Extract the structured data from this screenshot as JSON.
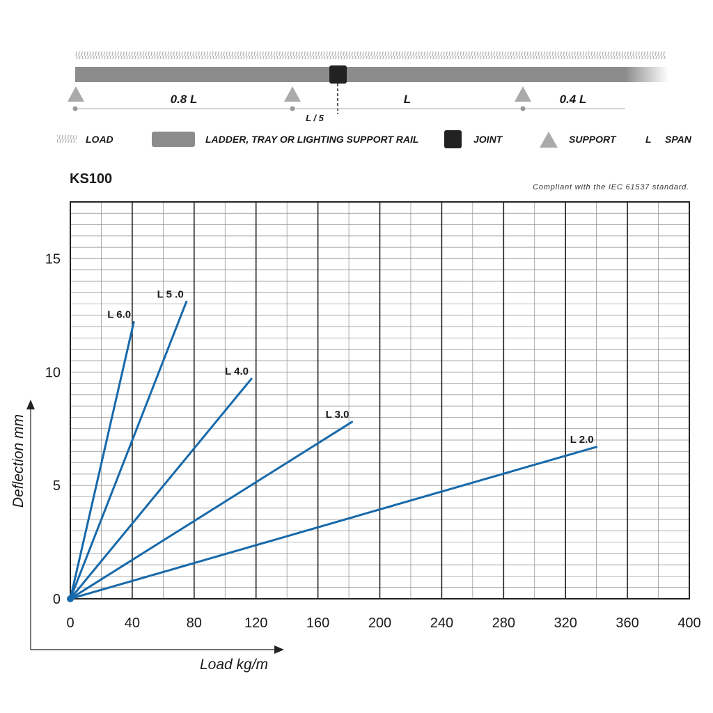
{
  "diagram": {
    "dim_left": "0.8 L",
    "dim_mid": "L",
    "dim_right": "0.4 L",
    "joint_offset": "L / 5"
  },
  "legend": {
    "load": "LOAD",
    "rail": "LADDER, TRAY OR LIGHTING SUPPORT RAIL",
    "joint": "JOINT",
    "support": "SUPPORT",
    "span_symbol": "L",
    "span": "SPAN"
  },
  "model": "KS100",
  "standard_note": "Compliant with the IEC 61537 standard.",
  "colors": {
    "series": "#1769aa",
    "rail": "#8c8c8c",
    "joint": "#222222",
    "support": "#aaaaaa",
    "grid": "#444444"
  },
  "chart_data": {
    "type": "line",
    "title": "KS100",
    "xlabel": "Load kg/m",
    "ylabel": "Deflection mm",
    "xlim": [
      0,
      400
    ],
    "ylim": [
      0,
      17.5
    ],
    "xticks": [
      "0",
      "40",
      "80",
      "120",
      "160",
      "200",
      "240",
      "280",
      "320",
      "360",
      "400"
    ],
    "yticks": [
      {
        "value": 0,
        "label": "0"
      },
      {
        "value": 5,
        "label": "5"
      },
      {
        "value": 10,
        "label": "10"
      },
      {
        "value": 15,
        "label": "15"
      }
    ],
    "grid": true,
    "series": [
      {
        "name": "L 6.0",
        "points": [
          [
            0,
            0
          ],
          [
            41,
            12.2
          ]
        ]
      },
      {
        "name": "L 5 .0",
        "points": [
          [
            0,
            0
          ],
          [
            75,
            13.1
          ]
        ]
      },
      {
        "name": "L 4.0",
        "points": [
          [
            0,
            0
          ],
          [
            117,
            9.7
          ]
        ]
      },
      {
        "name": "L 3.0",
        "points": [
          [
            0,
            0
          ],
          [
            182,
            7.8
          ]
        ]
      },
      {
        "name": "L 2.0",
        "points": [
          [
            0,
            0
          ],
          [
            340,
            6.7
          ]
        ]
      }
    ]
  }
}
